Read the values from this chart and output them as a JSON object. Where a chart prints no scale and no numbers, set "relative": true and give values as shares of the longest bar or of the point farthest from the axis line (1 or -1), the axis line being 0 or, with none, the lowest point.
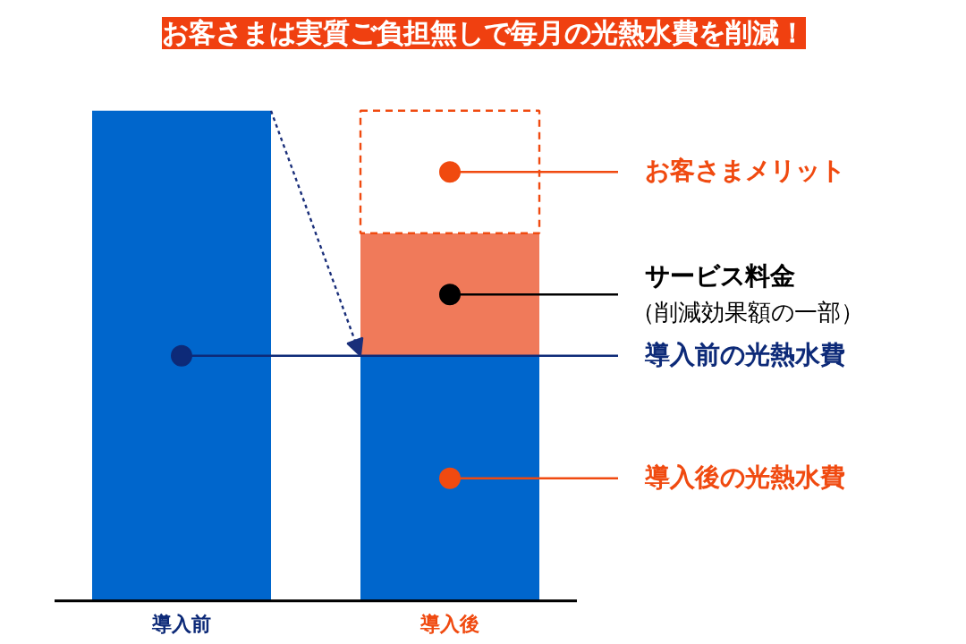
{
  "chart_data": {
    "type": "bar",
    "title": "お客さまは実質ご負担無しで毎月の光熱水費を削減！",
    "categories": [
      "導入前",
      "導入後"
    ],
    "relative": true,
    "stacked": true,
    "annotations": [
      "（削減効果額の一部）"
    ],
    "series": [
      {
        "name": "導入前の光熱水費",
        "color": "#0066cc",
        "values": [
          1,
          null
        ]
      },
      {
        "name": "導入後の光熱水費",
        "color": "#0066cc",
        "values": [
          null,
          0.5
        ]
      },
      {
        "name": "サービス料金",
        "color": "#f07a5a",
        "values": [
          null,
          0.25
        ]
      },
      {
        "name": "お客さまメリット",
        "color": "#ffffff",
        "line_style": "dashed",
        "values": [
          null,
          0.25
        ]
      }
    ]
  }
}
